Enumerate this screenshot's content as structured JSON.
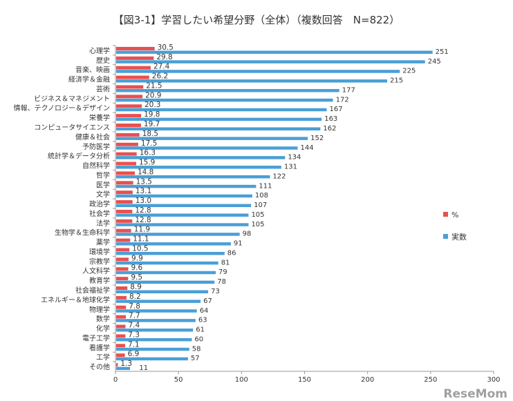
{
  "chart_data": {
    "type": "bar",
    "title": "【図3-1】学習したい希望分野（全体）（複数回答　N=822）",
    "categories": [
      "心理学",
      "歴史",
      "音楽、映画",
      "経済学＆金融",
      "芸術",
      "ビジネス＆マネジメント",
      "情報、テクノロジー＆デザイン",
      "栄養学",
      "コンピュータサイエンス",
      "健康＆社会",
      "予防医学",
      "統計学＆データ分析",
      "自然科学",
      "哲学",
      "医学",
      "文学",
      "政治学",
      "社会学",
      "法学",
      "生物学＆生命科学",
      "薬学",
      "環境学",
      "宗教学",
      "人文科学",
      "教育学",
      "社会福祉学",
      "エネルギー＆地球化学",
      "物理学",
      "数学",
      "化学",
      "電子工学",
      "看護学",
      "工学",
      "その他"
    ],
    "series": [
      {
        "name": "%",
        "color": "#e8504f",
        "values": [
          30.5,
          29.8,
          27.4,
          26.2,
          21.5,
          20.9,
          20.3,
          19.8,
          19.7,
          18.5,
          17.5,
          16.3,
          15.9,
          14.8,
          13.5,
          13.1,
          13.0,
          12.8,
          12.8,
          11.9,
          11.1,
          10.5,
          9.9,
          9.6,
          9.5,
          8.9,
          8.2,
          7.8,
          7.7,
          7.4,
          7.3,
          7.1,
          6.9,
          1.3
        ],
        "labels": [
          "30.5",
          "29.8",
          "27.4",
          "26.2",
          "21.5",
          "20.9",
          "20.3",
          "19.8",
          "19.7",
          "18.5",
          "17.5",
          "16.3",
          "15.9",
          "14.8",
          "13.5",
          "13.1",
          "13.0",
          "12.8",
          "12.8",
          "11.9",
          "11.1",
          "10.5",
          "9.9",
          "9.6",
          "9.5",
          "8.9",
          "8.2",
          "7.8",
          "7.7",
          "7.4",
          "7.3",
          "7.1",
          "6.9",
          "1.3"
        ]
      },
      {
        "name": "実数",
        "color": "#4a9fd6",
        "values": [
          251,
          245,
          225,
          215,
          177,
          172,
          167,
          163,
          162,
          152,
          144,
          134,
          131,
          122,
          111,
          108,
          107,
          105,
          105,
          98,
          91,
          86,
          81,
          79,
          78,
          73,
          67,
          64,
          63,
          61,
          60,
          58,
          57,
          11
        ]
      }
    ],
    "xticks": [
      "0",
      "50",
      "100",
      "150",
      "200",
      "250",
      "300"
    ],
    "xlim": [
      0,
      300
    ],
    "legend": "right"
  },
  "watermark": "ReseMom"
}
